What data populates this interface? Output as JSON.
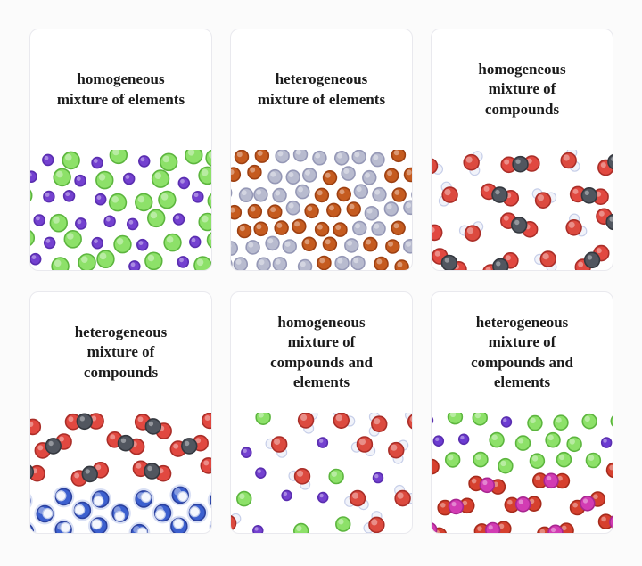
{
  "page": {
    "background": "#fbfbfb"
  },
  "card_style": {
    "background": "#ffffff",
    "border": "#e9e9ee",
    "title_color": "#1b1b1b"
  },
  "cards": [
    {
      "id": "homogeneous-elements",
      "title": "homogeneous\nmixture of elements",
      "diagram": {
        "kind": "mixed-elements",
        "seed": 101,
        "grid": {
          "cols": 9,
          "rows": 6
        },
        "species": [
          {
            "name": "green-atom",
            "fill": "#8DE169",
            "stroke": "#5CB53E",
            "r": 9.5
          },
          {
            "name": "purple-atom",
            "fill": "#7441D0",
            "stroke": "#5A2EB0",
            "r": 6
          }
        ]
      }
    },
    {
      "id": "heterogeneous-elements",
      "title": "heterogeneous\nmixture of elements",
      "diagram": {
        "kind": "clustered-elements",
        "seed": 202,
        "grid": {
          "cols": 11,
          "rows": 7
        },
        "species": [
          {
            "name": "gray-atom",
            "fill": "#B8BBCF",
            "stroke": "#9598B6",
            "r": 7.5
          },
          {
            "name": "orange-atom",
            "fill": "#C55B1F",
            "stroke": "#9D4012",
            "r": 7.5
          }
        ],
        "clusters": [
          [
            0.07,
            0.18
          ],
          [
            0.1,
            0.6
          ],
          [
            0.48,
            0.75
          ],
          [
            0.6,
            0.45
          ],
          [
            0.93,
            0.25
          ],
          [
            0.88,
            0.85
          ]
        ],
        "cluster_radius": 0.14
      }
    },
    {
      "id": "homogeneous-compounds",
      "title": "homogeneous\nmixture of\ncompounds",
      "diagram": {
        "kind": "mixed-compounds",
        "seed": 303,
        "grid": {
          "cols": 5,
          "rows": 4
        },
        "co2": {
          "name": "co2-molecule",
          "o_fill": "#E14840",
          "o_stroke": "#AA2E28",
          "c_fill": "#51565F",
          "c_stroke": "#34383F",
          "r": 8.5,
          "bond": 13
        },
        "water": {
          "name": "water-molecule",
          "o_fill": "#DC4A3F",
          "o_stroke": "#AA2E28",
          "h_fill": "#F1F3FA",
          "h_stroke": "#C7CFE9",
          "o_r": 8.5,
          "h_r": 5.5
        }
      }
    },
    {
      "id": "heterogeneous-compounds",
      "title": "heterogeneous\nmixture of\ncompounds",
      "diagram": {
        "kind": "layered-compounds",
        "seed": 404,
        "top_grid": {
          "cols": 4,
          "rows": 3
        },
        "bottom_grid": {
          "cols": 6,
          "rows": 3
        },
        "co2": {
          "name": "co2-molecule",
          "o_fill": "#E14840",
          "o_stroke": "#AA2E28",
          "c_fill": "#51565F",
          "c_stroke": "#34383F",
          "r": 8.5,
          "bond": 13
        },
        "blue": {
          "name": "blue-molecule",
          "halo": "#D9E0F5",
          "fill": "#3C60CF",
          "stroke": "#2B419F",
          "h_fill": "#F5F7FD",
          "h_stroke": "#BDC9EA",
          "r": 9,
          "h_r": 5.5
        }
      }
    },
    {
      "id": "homogeneous-compounds-elements",
      "title": "homogeneous\nmixture of\ncompounds and\nelements",
      "diagram": {
        "kind": "mixed-compounds-elements",
        "seed": 505,
        "grid": {
          "cols": 6,
          "rows": 5
        },
        "water": {
          "name": "water-molecule",
          "o_fill": "#DC4A3F",
          "o_stroke": "#AA2E28",
          "h_fill": "#F1F3FA",
          "h_stroke": "#C7CFE9",
          "o_r": 8.5,
          "h_r": 5.5
        },
        "green": {
          "name": "green-atom",
          "fill": "#8DE169",
          "stroke": "#5CB53E",
          "r": 8
        },
        "purple": {
          "name": "purple-atom",
          "fill": "#7441D0",
          "stroke": "#5A2EB0",
          "r": 5.5
        }
      }
    },
    {
      "id": "heterogeneous-compounds-elements",
      "title": "heterogeneous\nmixture of\ncompounds and\nelements",
      "diagram": {
        "kind": "layered-compounds-elements",
        "seed": 606,
        "top_grid": {
          "cols": 8,
          "rows": 3
        },
        "bottom_grid": {
          "cols": 4,
          "rows": 3
        },
        "green": {
          "name": "green-atom",
          "fill": "#8DE169",
          "stroke": "#5CB53E",
          "r": 8
        },
        "purple": {
          "name": "purple-atom",
          "fill": "#6C3BD2",
          "stroke": "#5A2EB0",
          "r": 5.5
        },
        "molecule": {
          "name": "red-magenta-molecule",
          "o_fill": "#D6402E",
          "o_stroke": "#A62B1C",
          "c_fill": "#D23CB3",
          "c_stroke": "#A82690",
          "r": 8,
          "bond": 12.5
        }
      }
    }
  ]
}
